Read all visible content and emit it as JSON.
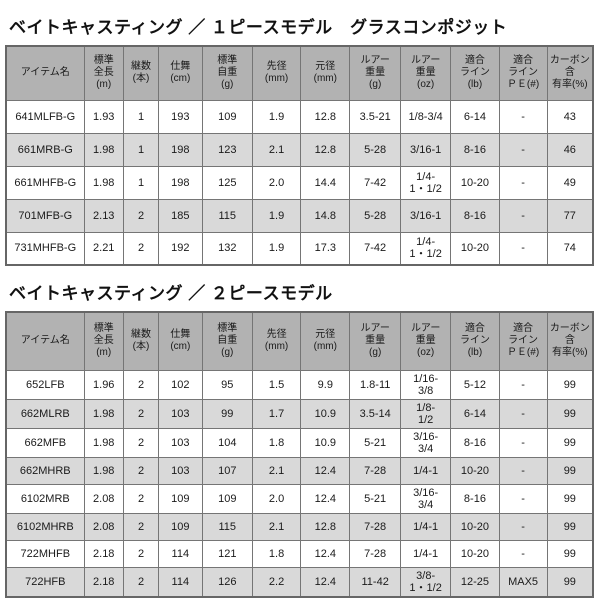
{
  "colors": {
    "header_bg": "#b2b2b2",
    "alt_row_bg": "#d9d9d9",
    "border": "#757575",
    "text": "#1a1a1a"
  },
  "tables": [
    {
      "title": "ベイトキャスティング ／ １ピースモデル　グラスコンポジット",
      "headers": [
        "アイテム名",
        "標準\n全長\n(m)",
        "継数\n(本)",
        "仕舞\n(cm)",
        "標準\n自重\n(g)",
        "先径\n(mm)",
        "元径\n(mm)",
        "ルアー\n重量\n(g)",
        "ルアー\n重量\n(oz)",
        "適合\nライン\n(lb)",
        "適合\nライン\nＰＥ(#)",
        "カーボン含\n有率(%)"
      ],
      "rows": [
        [
          "641MLFB-G",
          "1.93",
          "1",
          "193",
          "109",
          "1.9",
          "12.8",
          "3.5-21",
          "1/8-3/4",
          "6-14",
          "-",
          "43"
        ],
        [
          "661MRB-G",
          "1.98",
          "1",
          "198",
          "123",
          "2.1",
          "12.8",
          "5-28",
          "3/16-1",
          "8-16",
          "-",
          "46"
        ],
        [
          "661MHFB-G",
          "1.98",
          "1",
          "198",
          "125",
          "2.0",
          "14.4",
          "7-42",
          "1/4-\n1・1/2",
          "10-20",
          "-",
          "49"
        ],
        [
          "701MFB-G",
          "2.13",
          "2",
          "185",
          "115",
          "1.9",
          "14.8",
          "5-28",
          "3/16-1",
          "8-16",
          "-",
          "77"
        ],
        [
          "731MHFB-G",
          "2.21",
          "2",
          "192",
          "132",
          "1.9",
          "17.3",
          "7-42",
          "1/4-\n1・1/2",
          "10-20",
          "-",
          "74"
        ]
      ]
    },
    {
      "title": "ベイトキャスティング ／ ２ピースモデル",
      "headers": [
        "アイテム名",
        "標準\n全長\n(m)",
        "継数\n(本)",
        "仕舞\n(cm)",
        "標準\n自重\n(g)",
        "先径\n(mm)",
        "元径\n(mm)",
        "ルアー\n重量\n(g)",
        "ルアー\n重量\n(oz)",
        "適合\nライン\n(lb)",
        "適合\nライン\nＰＥ(#)",
        "カーボン含\n有率(%)"
      ],
      "rows": [
        [
          "652LFB",
          "1.96",
          "2",
          "102",
          "95",
          "1.5",
          "9.9",
          "1.8-11",
          "1/16-\n3/8",
          "5-12",
          "-",
          "99"
        ],
        [
          "662MLRB",
          "1.98",
          "2",
          "103",
          "99",
          "1.7",
          "10.9",
          "3.5-14",
          "1/8-\n1/2",
          "6-14",
          "-",
          "99"
        ],
        [
          "662MFB",
          "1.98",
          "2",
          "103",
          "104",
          "1.8",
          "10.9",
          "5-21",
          "3/16-\n3/4",
          "8-16",
          "-",
          "99"
        ],
        [
          "662MHRB",
          "1.98",
          "2",
          "103",
          "107",
          "2.1",
          "12.4",
          "7-28",
          "1/4-1",
          "10-20",
          "-",
          "99"
        ],
        [
          "6102MRB",
          "2.08",
          "2",
          "109",
          "109",
          "2.0",
          "12.4",
          "5-21",
          "3/16-\n3/4",
          "8-16",
          "-",
          "99"
        ],
        [
          "6102MHRB",
          "2.08",
          "2",
          "109",
          "115",
          "2.1",
          "12.8",
          "7-28",
          "1/4-1",
          "10-20",
          "-",
          "99"
        ],
        [
          "722MHFB",
          "2.18",
          "2",
          "114",
          "121",
          "1.8",
          "12.4",
          "7-28",
          "1/4-1",
          "10-20",
          "-",
          "99"
        ],
        [
          "722HFB",
          "2.18",
          "2",
          "114",
          "126",
          "2.2",
          "12.4",
          "11-42",
          "3/8-\n1・1/2",
          "12-25",
          "MAX5",
          "99"
        ]
      ]
    }
  ]
}
